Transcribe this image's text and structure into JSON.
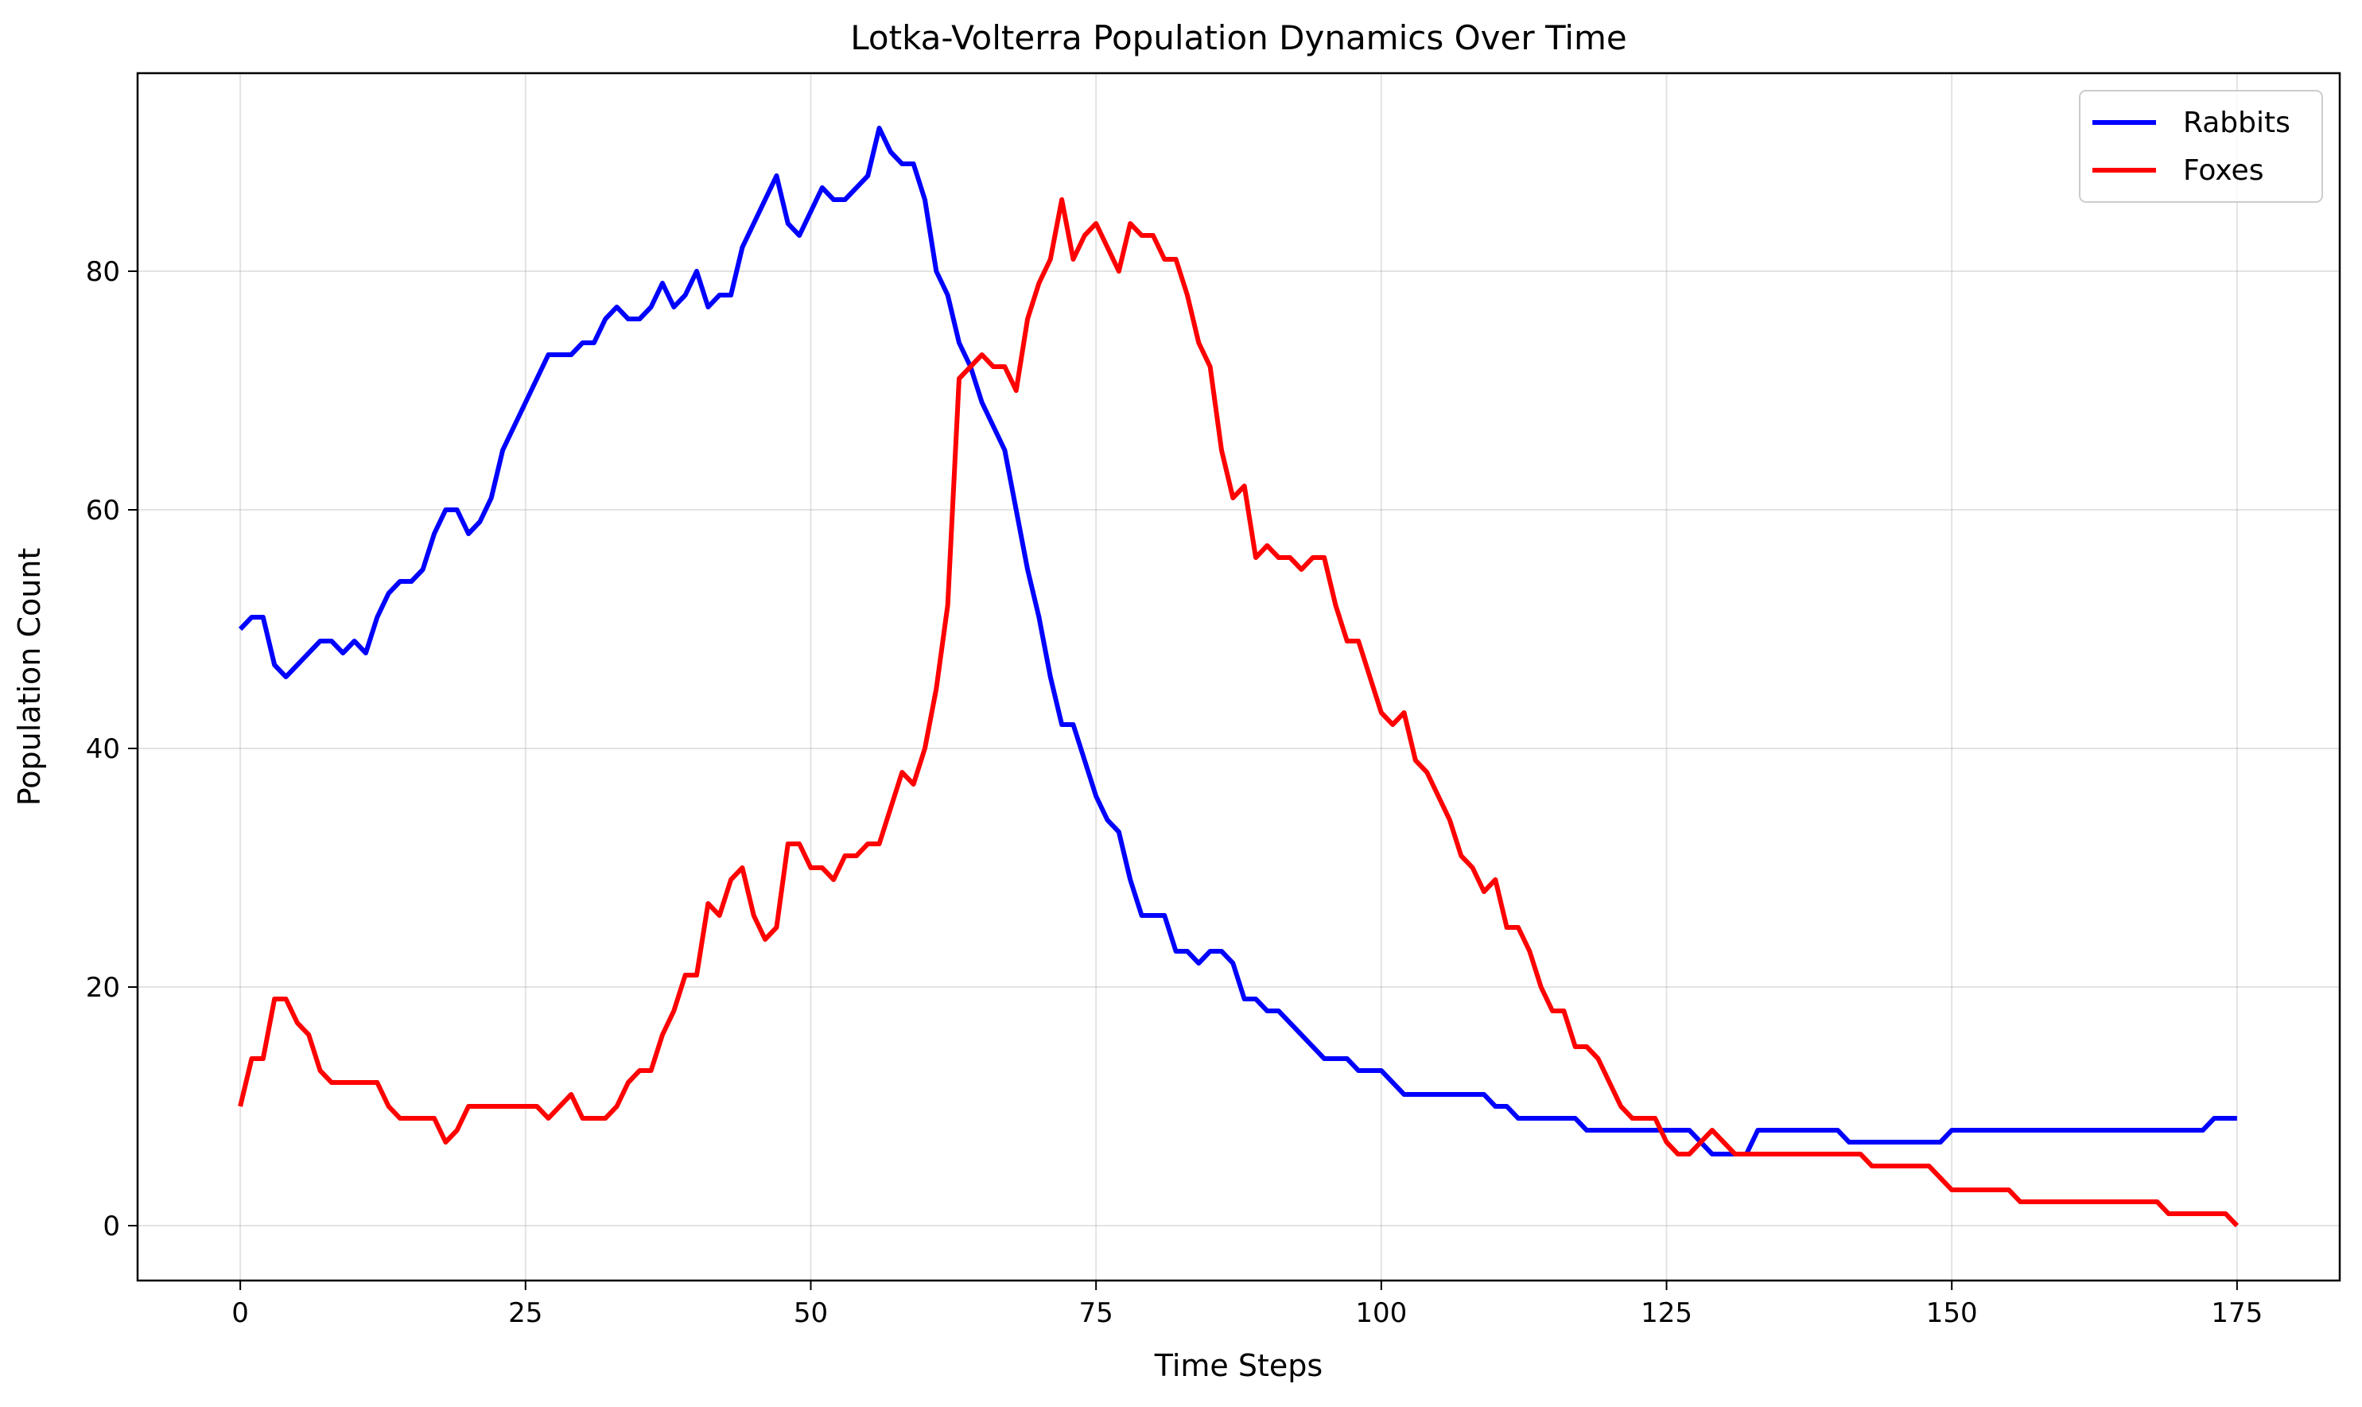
{
  "chart_data": {
    "type": "line",
    "title": "Lotka-Volterra Population Dynamics Over Time",
    "xlabel": "Time Steps",
    "ylabel": "Population Count",
    "xlim": [
      -9,
      184
    ],
    "ylim": [
      -4.6,
      96.6
    ],
    "xticks": [
      0,
      25,
      50,
      75,
      100,
      125,
      150,
      175
    ],
    "yticks": [
      0,
      20,
      40,
      60,
      80
    ],
    "grid": true,
    "legend_position": "top-right",
    "series": [
      {
        "name": "Rabbits",
        "color": "#0000ff",
        "values": [
          50,
          51,
          51,
          47,
          46,
          47,
          48,
          49,
          49,
          48,
          49,
          48,
          51,
          53,
          54,
          54,
          55,
          58,
          60,
          60,
          58,
          59,
          61,
          65,
          67,
          69,
          71,
          73,
          73,
          73,
          74,
          74,
          76,
          77,
          76,
          76,
          77,
          79,
          77,
          78,
          80,
          77,
          78,
          78,
          82,
          84,
          86,
          88,
          84,
          83,
          85,
          87,
          86,
          86,
          87,
          88,
          92,
          90,
          89,
          89,
          86,
          80,
          78,
          74,
          72,
          69,
          67,
          65,
          60,
          55,
          51,
          46,
          42,
          42,
          39,
          36,
          34,
          33,
          29,
          26,
          26,
          26,
          23,
          23,
          22,
          23,
          23,
          22,
          19,
          19,
          18,
          18,
          17,
          16,
          15,
          14,
          14,
          14,
          13,
          13,
          13,
          12,
          11,
          11,
          11,
          11,
          11,
          11,
          11,
          11,
          10,
          10,
          9,
          9,
          9,
          9,
          9,
          9,
          8,
          8,
          8,
          8,
          8,
          8,
          8,
          8,
          8,
          8,
          7,
          6,
          6,
          6,
          6,
          8,
          8,
          8,
          8,
          8,
          8,
          8,
          8,
          7,
          7,
          7,
          7,
          7,
          7,
          7,
          7,
          7,
          8,
          8,
          8,
          8,
          8,
          8,
          8,
          8,
          8,
          8,
          8,
          8,
          8,
          8,
          8,
          8,
          8,
          8,
          8,
          8,
          8,
          8,
          8,
          9,
          9,
          9
        ]
      },
      {
        "name": "Foxes",
        "color": "#ff0000",
        "values": [
          10,
          14,
          14,
          19,
          19,
          17,
          16,
          13,
          12,
          12,
          12,
          12,
          12,
          10,
          9,
          9,
          9,
          9,
          7,
          8,
          10,
          10,
          10,
          10,
          10,
          10,
          10,
          9,
          10,
          11,
          9,
          9,
          9,
          10,
          12,
          13,
          13,
          16,
          18,
          21,
          21,
          27,
          26,
          29,
          30,
          26,
          24,
          25,
          32,
          32,
          30,
          30,
          29,
          31,
          31,
          32,
          32,
          35,
          38,
          37,
          40,
          45,
          52,
          71,
          72,
          73,
          72,
          72,
          70,
          76,
          79,
          81,
          86,
          81,
          83,
          84,
          82,
          80,
          84,
          83,
          83,
          81,
          81,
          78,
          74,
          72,
          65,
          61,
          62,
          56,
          57,
          56,
          56,
          55,
          56,
          56,
          52,
          49,
          49,
          46,
          43,
          42,
          43,
          39,
          38,
          36,
          34,
          31,
          30,
          28,
          29,
          25,
          25,
          23,
          20,
          18,
          18,
          15,
          15,
          14,
          12,
          10,
          9,
          9,
          9,
          7,
          6,
          6,
          7,
          8,
          7,
          6,
          6,
          6,
          6,
          6,
          6,
          6,
          6,
          6,
          6,
          6,
          6,
          5,
          5,
          5,
          5,
          5,
          5,
          4,
          3,
          3,
          3,
          3,
          3,
          3,
          2,
          2,
          2,
          2,
          2,
          2,
          2,
          2,
          2,
          2,
          2,
          2,
          2,
          1,
          1,
          1,
          1,
          1,
          1,
          0
        ]
      }
    ]
  }
}
